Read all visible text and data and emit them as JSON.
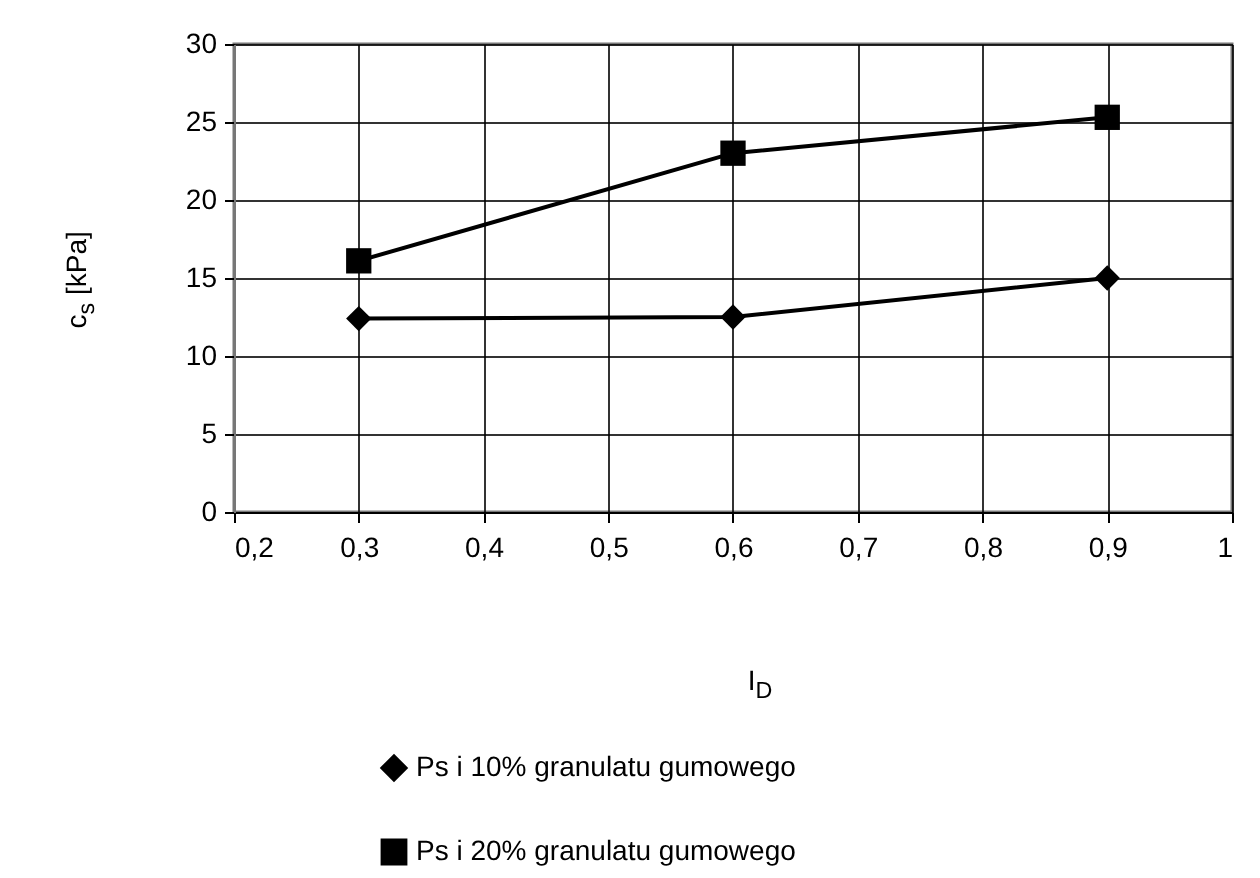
{
  "chart_data": {
    "type": "line",
    "xlabel": "I$_{D}$",
    "ylabel": "c$_{s}$ [kPa]",
    "x": [
      0.3,
      0.6,
      0.9
    ],
    "series": [
      {
        "name": "Ps i 10% granulatu gumowego",
        "color": "#000000",
        "marker": "diamond",
        "values": [
          12.4,
          12.5,
          15.0
        ]
      },
      {
        "name": "Ps i 20% granulatu gumowego",
        "color": "#000000",
        "marker": "square",
        "values": [
          16.1,
          23.0,
          25.3
        ]
      }
    ],
    "xlim": [
      0.2,
      1
    ],
    "xticks": [
      {
        "value": 0.2,
        "label": "0,2"
      },
      {
        "value": 0.3,
        "label": "0,3"
      },
      {
        "value": 0.4,
        "label": "0,4"
      },
      {
        "value": 0.5,
        "label": "0,5"
      },
      {
        "value": 0.6,
        "label": "0,6"
      },
      {
        "value": 0.7,
        "label": "0,7"
      },
      {
        "value": 0.8,
        "label": "0,8"
      },
      {
        "value": 0.9,
        "label": "0,9"
      },
      1
    ],
    "ylim": [
      0,
      30
    ],
    "yticks": [
      0,
      5,
      10,
      15,
      20,
      25,
      30
    ],
    "grid": true,
    "legend": "bottom",
    "line_style": "solid"
  }
}
